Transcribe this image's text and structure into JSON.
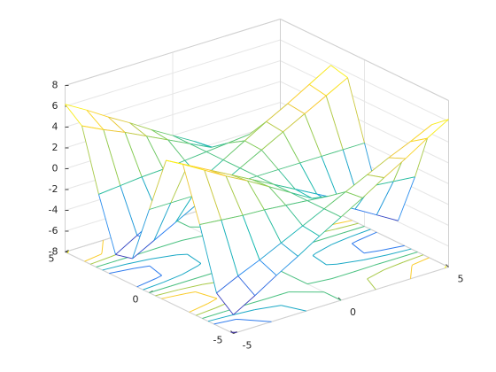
{
  "chart_data": {
    "type": "mesh",
    "contour": true,
    "grid": true,
    "colormap": "parula",
    "x": [
      -5,
      -4,
      -3,
      -2,
      -1,
      0,
      1,
      2,
      3,
      4,
      5
    ],
    "y": [
      -5,
      -4,
      -3,
      -2,
      -1,
      0,
      1,
      2,
      3,
      4,
      5
    ],
    "z": [
      [
        -6.2,
        -5.0,
        -3.7,
        -2.5,
        -1.2,
        0,
        1.2,
        2.5,
        3.7,
        5.0,
        6.2
      ],
      [
        -4.9,
        -3.9,
        -3.0,
        -2.0,
        -1.0,
        0,
        1.0,
        2.0,
        3.0,
        3.9,
        4.9
      ],
      [
        0.9,
        0.7,
        0.5,
        0.4,
        0.2,
        0,
        -0.2,
        -0.4,
        -0.5,
        -0.7,
        -0.9
      ],
      [
        5.9,
        4.7,
        3.5,
        2.4,
        1.2,
        0,
        -1.2,
        -2.4,
        -3.5,
        -4.7,
        -5.9
      ],
      [
        5.5,
        4.4,
        3.3,
        2.2,
        1.1,
        0,
        -1.1,
        -2.2,
        -3.3,
        -4.4,
        -5.5
      ],
      [
        0,
        0,
        0,
        0,
        0,
        0,
        0,
        0,
        0,
        0,
        0
      ],
      [
        -5.5,
        -4.4,
        -3.3,
        -2.2,
        -1.1,
        0,
        1.1,
        2.2,
        3.3,
        4.4,
        5.5
      ],
      [
        -5.9,
        -4.7,
        -3.5,
        -2.4,
        -1.2,
        0,
        1.2,
        2.4,
        3.5,
        4.7,
        5.9
      ],
      [
        -0.9,
        -0.7,
        -0.5,
        -0.4,
        -0.2,
        0,
        0.2,
        0.4,
        0.5,
        0.7,
        0.9
      ],
      [
        4.9,
        3.9,
        3.0,
        2.0,
        1.0,
        0,
        -1.0,
        -2.0,
        -3.0,
        -3.9,
        -4.9
      ],
      [
        6.2,
        5.0,
        3.7,
        2.5,
        1.2,
        0,
        -1.2,
        -2.5,
        -3.7,
        -5.0,
        -6.2
      ]
    ],
    "xlim": [
      -5,
      5
    ],
    "ylim": [
      -5,
      5
    ],
    "zlim": [
      -8,
      8
    ],
    "xticks": [
      -5,
      0,
      5
    ],
    "yticks": [
      -5,
      0,
      5
    ],
    "zticks": [
      -8,
      -6,
      -4,
      -2,
      0,
      2,
      4,
      6,
      8
    ]
  }
}
